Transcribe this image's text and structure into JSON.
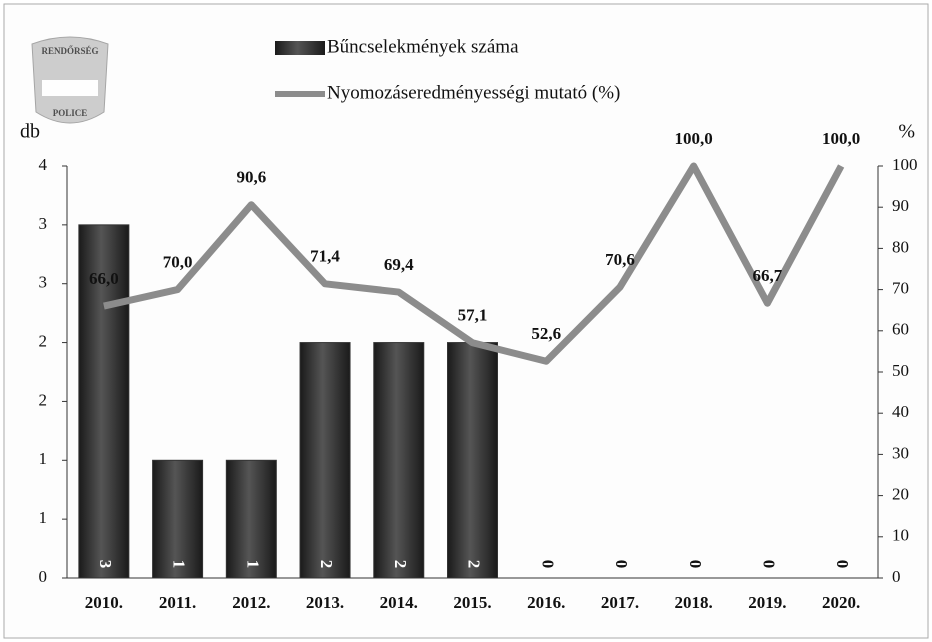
{
  "logo": {
    "top": "RENDŐRSÉG",
    "bottom": "POLICE"
  },
  "chart_data": {
    "type": "bar-line",
    "categories": [
      "2010.",
      "2011.",
      "2012.",
      "2013.",
      "2014.",
      "2015.",
      "2016.",
      "2017.",
      "2018.",
      "2019.",
      "2020."
    ],
    "series": [
      {
        "name": "Bűncselekmények száma",
        "type": "bar",
        "color": "#333333",
        "values": [
          3,
          1,
          1,
          2,
          2,
          2,
          0,
          0,
          0,
          0,
          0
        ]
      },
      {
        "name": "Nyomozáseredményességi mutató (%)",
        "type": "line",
        "axis": "y2",
        "color": "#8c8c8c",
        "values": [
          66.0,
          70.0,
          90.6,
          71.4,
          69.4,
          57.1,
          52.6,
          70.6,
          100.0,
          66.7,
          100.0
        ],
        "value_labels": [
          "66,0",
          "70,0",
          "90,6",
          "71,4",
          "69,4",
          "57,1",
          "52,6",
          "70,6",
          "100,0",
          "66,7",
          "100,0"
        ]
      }
    ],
    "ylabel": "db",
    "y2label": "%",
    "ylim": [
      0,
      3.5
    ],
    "yticks": [
      {
        "value": 0,
        "label": "0"
      },
      {
        "value": 0.5,
        "label": "1"
      },
      {
        "value": 1,
        "label": "1"
      },
      {
        "value": 1.5,
        "label": "2"
      },
      {
        "value": 2,
        "label": "2"
      },
      {
        "value": 2.5,
        "label": "3"
      },
      {
        "value": 3,
        "label": "3"
      },
      {
        "value": 3.5,
        "label": "4"
      }
    ],
    "y2lim": [
      0,
      100
    ],
    "y2ticks": [
      0,
      10,
      20,
      30,
      40,
      50,
      60,
      70,
      80,
      90,
      100
    ]
  }
}
